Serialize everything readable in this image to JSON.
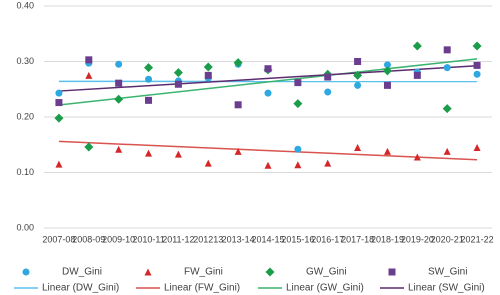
{
  "chart_data": {
    "type": "scatter",
    "categories": [
      "2007-08",
      "2008-09",
      "2009-10",
      "2010-11",
      "2011-12",
      "201213",
      "2013-14",
      "2014-15",
      "2015-16",
      "2016-17",
      "2017-18",
      "2018-19",
      "2019-20",
      "2020-21",
      "2021-22"
    ],
    "ylim": [
      0,
      0.4
    ],
    "yticks": [
      {
        "value": 0,
        "label": "0.00"
      },
      {
        "value": 0.1,
        "label": "0.10"
      },
      {
        "value": 0.2,
        "label": "0.20"
      },
      {
        "value": 0.3,
        "label": "0.30"
      },
      {
        "value": 0.4,
        "label": "0.40"
      }
    ],
    "grid": true,
    "series": [
      {
        "name": "DW_Gini",
        "trendline": "Linear (DW_Gini)",
        "marker": "circle",
        "color": "#2ea8e0",
        "trend_color": "#5bc0eb",
        "values": [
          0.243,
          0.297,
          0.295,
          0.268,
          0.265,
          0.27,
          0.295,
          0.243,
          0.142,
          0.245,
          0.257,
          0.294,
          0.281,
          0.289,
          0.277
        ]
      },
      {
        "name": "FW_Gini",
        "trendline": "Linear (FW_Gini)",
        "marker": "triangle",
        "color": "#d62728",
        "trend_color": "#d9534f",
        "values": [
          0.115,
          0.275,
          0.142,
          0.135,
          0.133,
          0.117,
          0.138,
          0.113,
          0.114,
          0.117,
          0.145,
          0.138,
          0.128,
          0.138,
          0.145
        ]
      },
      {
        "name": "GW_Gini",
        "trendline": "Linear (GW_Gini)",
        "marker": "diamond",
        "color": "#1a9c4a",
        "trend_color": "#3cb371",
        "values": [
          0.198,
          0.146,
          0.232,
          0.289,
          0.28,
          0.29,
          0.298,
          0.285,
          0.224,
          0.277,
          0.275,
          0.283,
          0.328,
          0.215,
          0.328
        ]
      },
      {
        "name": "SW_Gini",
        "trendline": "Linear (SW_Gini)",
        "marker": "square",
        "color": "#6a3d8f",
        "trend_color": "#5b2c6f",
        "values": [
          0.226,
          0.303,
          0.261,
          0.23,
          0.259,
          0.275,
          0.222,
          0.287,
          0.262,
          0.272,
          0.3,
          0.257,
          0.275,
          0.321,
          0.293
        ]
      }
    ]
  }
}
